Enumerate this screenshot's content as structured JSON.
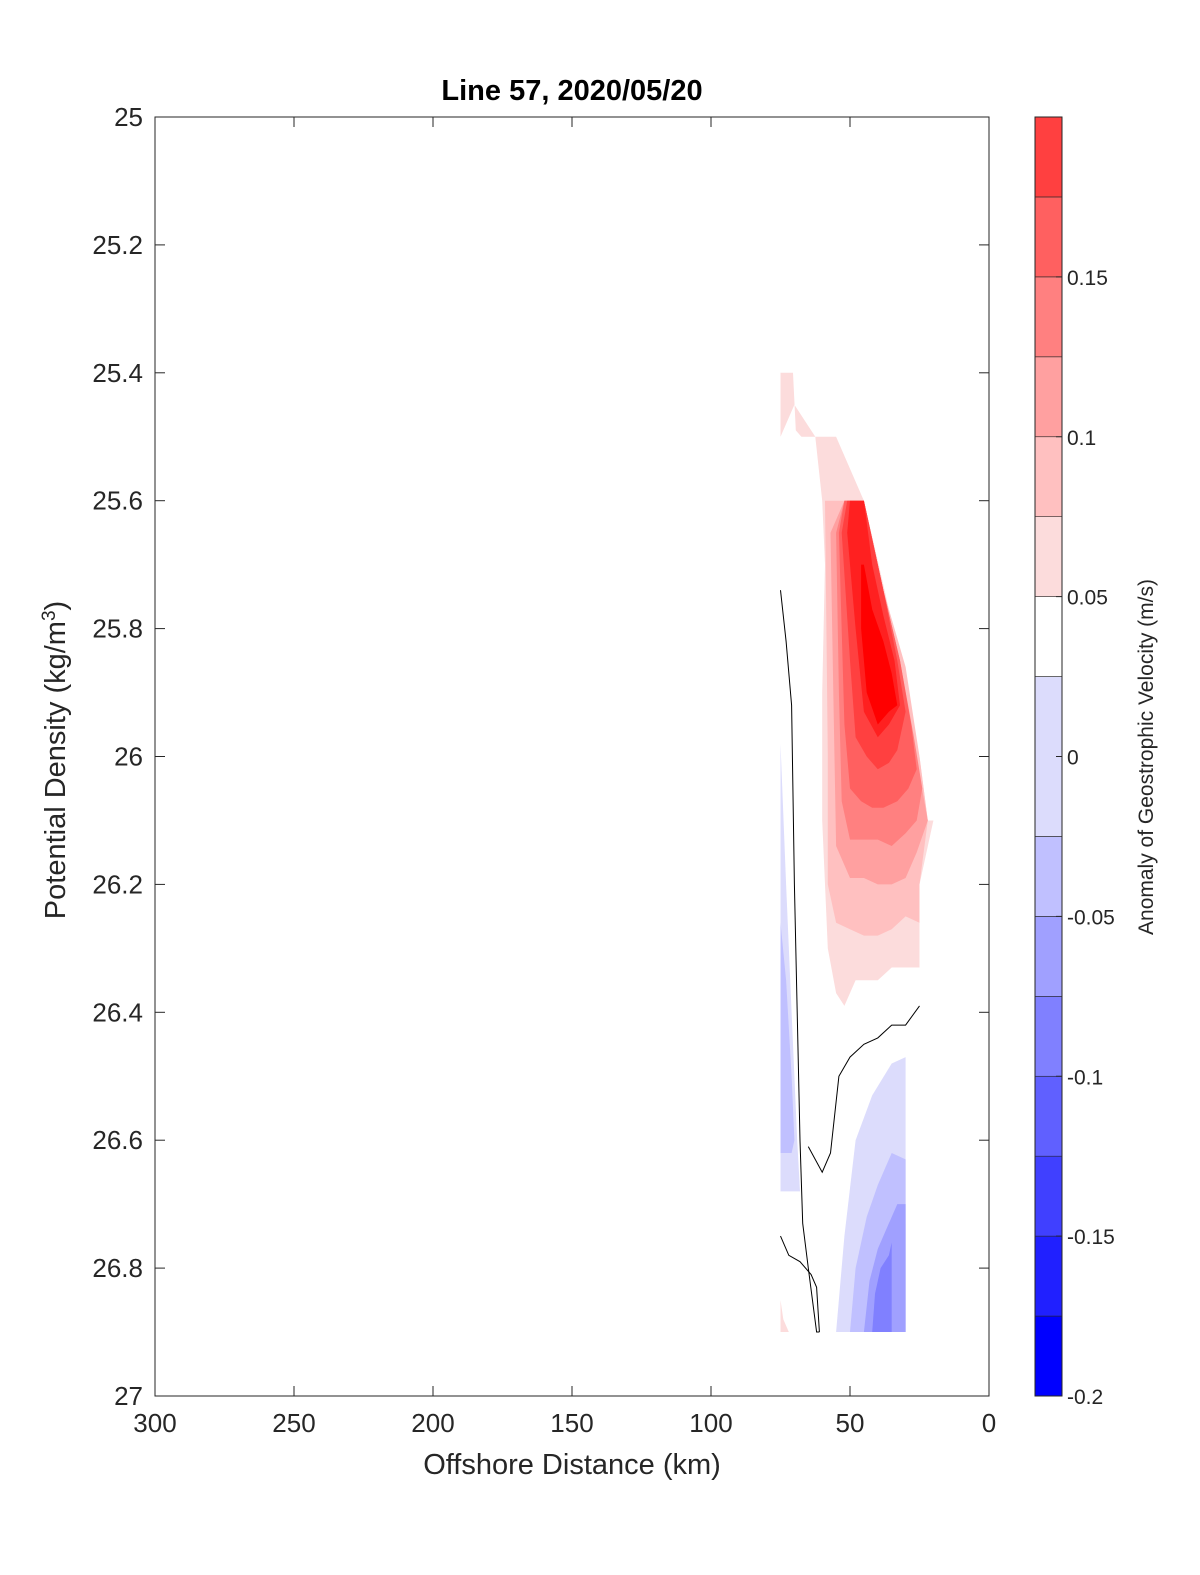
{
  "chart_data": {
    "type": "contour",
    "title": "Line 57, 2020/05/20",
    "xlabel": "Offshore Distance (km)",
    "ylabel_main": "Potential Density (kg/m",
    "ylabel_sup": "3",
    "ylabel_close": ")",
    "colorbar_label": "Anomaly of Geostrophic Velocity (m/s)",
    "xlim": [
      0,
      300
    ],
    "x_reversed": true,
    "ylim": [
      25,
      27
    ],
    "y_reversed": true,
    "xticks": [
      300,
      250,
      200,
      150,
      100,
      50,
      0
    ],
    "xtick_labels": [
      "300",
      "250",
      "200",
      "150",
      "100",
      "50",
      "0"
    ],
    "yticks": [
      25,
      25.2,
      25.4,
      25.6,
      25.8,
      26,
      26.2,
      26.4,
      26.6,
      26.8,
      27
    ],
    "ytick_labels": [
      "25",
      "25.2",
      "25.4",
      "25.6",
      "25.8",
      "26",
      "26.2",
      "26.4",
      "26.6",
      "26.8",
      "27"
    ],
    "colorbar": {
      "clim": [
        -0.2,
        0.2
      ],
      "ticks": [
        -0.2,
        -0.15,
        -0.1,
        -0.05,
        0,
        0.05,
        0.1,
        0.15
      ],
      "tick_labels": [
        "-0.2",
        "-0.15",
        "-0.1",
        "-0.05",
        "0",
        "0.05",
        "0.1",
        "0.15"
      ],
      "levels": [
        -0.2,
        -0.175,
        -0.15,
        -0.125,
        -0.1,
        -0.075,
        -0.05,
        -0.025,
        0.025,
        0.05,
        0.075,
        0.1,
        0.125,
        0.15,
        0.175,
        0.2
      ],
      "colors": [
        "#0000ff",
        "#2020ff",
        "#4040ff",
        "#6060ff",
        "#8080ff",
        "#a0a0ff",
        "#c0c0ff",
        "#dcdcfc",
        "#ffffff",
        "#fcdcdc",
        "#ffc0c0",
        "#ffa0a0",
        "#ff8080",
        "#ff6060",
        "#ff4040",
        "#ff2020",
        "#ff0000"
      ]
    },
    "filled_regions": [
      {
        "level": 0.0375,
        "color": "#fcdcdc",
        "points": [
          [
            75,
            25.4
          ],
          [
            70.5,
            25.4
          ],
          [
            69.5,
            25.49
          ],
          [
            67.5,
            25.5
          ],
          [
            62.5,
            25.5
          ],
          [
            60,
            25.6
          ],
          [
            59,
            25.7
          ],
          [
            60,
            25.9
          ],
          [
            60,
            26.1
          ],
          [
            58,
            26.3
          ],
          [
            55,
            26.37
          ],
          [
            52,
            26.39
          ],
          [
            48,
            26.35
          ],
          [
            40,
            26.35
          ],
          [
            35,
            26.33
          ],
          [
            30,
            26.33
          ],
          [
            25,
            26.33
          ],
          [
            25,
            26.2
          ],
          [
            20,
            26.1
          ],
          [
            22,
            26.1
          ],
          [
            25,
            26
          ],
          [
            30,
            25.9
          ],
          [
            37,
            25.75
          ],
          [
            45,
            25.6
          ],
          [
            55,
            25.5
          ],
          [
            62.5,
            25.5
          ],
          [
            70,
            25.45
          ],
          [
            75,
            25.5
          ]
        ]
      },
      {
        "level": -0.0375,
        "color": "#dcdcfc",
        "points": [
          [
            75,
            25.98
          ],
          [
            73,
            26.2
          ],
          [
            71,
            26.4
          ],
          [
            69,
            26.6
          ],
          [
            68,
            26.68
          ],
          [
            75,
            26.68
          ]
        ]
      },
      {
        "level": -0.0375,
        "color": "#dcdcfc",
        "points": [
          [
            55,
            26.9
          ],
          [
            52,
            26.75
          ],
          [
            48,
            26.6
          ],
          [
            42,
            26.53
          ],
          [
            35,
            26.48
          ],
          [
            30,
            26.47
          ],
          [
            30,
            26.9
          ]
        ]
      },
      {
        "level": 0.0625,
        "color": "#ffc0c0",
        "points": [
          [
            59,
            25.6
          ],
          [
            57,
            25.6
          ],
          [
            52,
            25.6
          ],
          [
            45,
            25.6
          ],
          [
            38,
            25.74
          ],
          [
            30,
            25.86
          ],
          [
            25,
            26
          ],
          [
            22,
            26.1
          ],
          [
            25,
            26.2
          ],
          [
            25,
            26.26
          ],
          [
            30,
            26.25
          ],
          [
            35,
            26.27
          ],
          [
            40,
            26.28
          ],
          [
            45,
            26.28
          ],
          [
            50,
            26.27
          ],
          [
            55,
            26.26
          ],
          [
            58,
            26.2
          ],
          [
            58,
            26.0
          ],
          [
            58.5,
            25.8
          ]
        ]
      },
      {
        "level": 0.0875,
        "color": "#ffa0a0",
        "points": [
          [
            57,
            25.65
          ],
          [
            52,
            25.6
          ],
          [
            45,
            25.6
          ],
          [
            38,
            25.74
          ],
          [
            32,
            25.85
          ],
          [
            27,
            25.98
          ],
          [
            22,
            26.1
          ],
          [
            26,
            26.15
          ],
          [
            30,
            26.19
          ],
          [
            35,
            26.2
          ],
          [
            40,
            26.2
          ],
          [
            45,
            26.19
          ],
          [
            50,
            26.19
          ],
          [
            55,
            26.14
          ],
          [
            56,
            25.9
          ]
        ]
      },
      {
        "level": 0.1125,
        "color": "#ff8080",
        "points": [
          [
            55,
            25.65
          ],
          [
            52,
            25.6
          ],
          [
            45,
            25.6
          ],
          [
            38,
            25.74
          ],
          [
            32,
            25.85
          ],
          [
            27,
            25.97
          ],
          [
            24,
            26.05
          ],
          [
            26,
            26.1
          ],
          [
            30,
            26.12
          ],
          [
            35,
            26.14
          ],
          [
            40,
            26.13
          ],
          [
            45,
            26.13
          ],
          [
            50,
            26.13
          ],
          [
            53,
            26.07
          ],
          [
            54,
            25.9
          ]
        ]
      },
      {
        "level": 0.1375,
        "color": "#ff6060",
        "points": [
          [
            54,
            25.65
          ],
          [
            52,
            25.6
          ],
          [
            45,
            25.6
          ],
          [
            38,
            25.74
          ],
          [
            32,
            25.85
          ],
          [
            28,
            25.95
          ],
          [
            26,
            26.02
          ],
          [
            29,
            26.05
          ],
          [
            33,
            26.07
          ],
          [
            38,
            26.08
          ],
          [
            42,
            26.08
          ],
          [
            46,
            26.07
          ],
          [
            50,
            26.05
          ],
          [
            52,
            25.95
          ]
        ]
      },
      {
        "level": 0.1625,
        "color": "#ff4040",
        "points": [
          [
            53,
            25.65
          ],
          [
            51,
            25.6
          ],
          [
            45,
            25.6
          ],
          [
            38,
            25.74
          ],
          [
            33,
            25.85
          ],
          [
            30,
            25.93
          ],
          [
            33,
            25.99
          ],
          [
            36,
            26.01
          ],
          [
            40,
            26.02
          ],
          [
            44,
            26.0
          ],
          [
            48,
            25.97
          ],
          [
            50,
            25.85
          ]
        ]
      },
      {
        "level": 0.1875,
        "color": "#ff2020",
        "points": [
          [
            51,
            25.65
          ],
          [
            50,
            25.6
          ],
          [
            45,
            25.6
          ],
          [
            42,
            25.7
          ],
          [
            38,
            25.78
          ],
          [
            34,
            25.85
          ],
          [
            32,
            25.92
          ],
          [
            36,
            25.95
          ],
          [
            40,
            25.97
          ],
          [
            45,
            25.93
          ],
          [
            48,
            25.8
          ]
        ]
      },
      {
        "level": 0.2,
        "color": "#ff0000",
        "points": [
          [
            46,
            25.7
          ],
          [
            45,
            25.7
          ],
          [
            42,
            25.77
          ],
          [
            38,
            25.82
          ],
          [
            35,
            25.87
          ],
          [
            33,
            25.92
          ],
          [
            36,
            25.93
          ],
          [
            40,
            25.95
          ],
          [
            44,
            25.9
          ],
          [
            46,
            25.8
          ]
        ]
      },
      {
        "level": -0.0625,
        "color": "#c0c0ff",
        "points": [
          [
            75,
            26.26
          ],
          [
            73,
            26.35
          ],
          [
            71,
            26.5
          ],
          [
            70,
            26.6
          ],
          [
            71,
            26.62
          ],
          [
            75,
            26.62
          ]
        ]
      },
      {
        "level": -0.0625,
        "color": "#c0c0ff",
        "points": [
          [
            50,
            26.9
          ],
          [
            48,
            26.8
          ],
          [
            44,
            26.72
          ],
          [
            40,
            26.67
          ],
          [
            35,
            26.62
          ],
          [
            30,
            26.63
          ],
          [
            30,
            26.9
          ]
        ]
      },
      {
        "level": -0.0875,
        "color": "#a0a0ff",
        "points": [
          [
            45,
            26.9
          ],
          [
            43,
            26.82
          ],
          [
            40,
            26.77
          ],
          [
            36,
            26.73
          ],
          [
            33,
            26.7
          ],
          [
            30,
            26.7
          ],
          [
            30,
            26.9
          ]
        ]
      },
      {
        "level": -0.1125,
        "color": "#8080ff",
        "points": [
          [
            42,
            26.9
          ],
          [
            41,
            26.84
          ],
          [
            39,
            26.8
          ],
          [
            36,
            26.78
          ],
          [
            35,
            26.76
          ],
          [
            35,
            26.9
          ]
        ]
      },
      {
        "level": 0.0375,
        "color": "#fcdcdc",
        "points": [
          [
            75,
            26.85
          ],
          [
            74,
            26.88
          ],
          [
            72,
            26.9
          ],
          [
            75,
            26.9
          ]
        ]
      }
    ],
    "zero_contours": [
      {
        "points": [
          [
            75,
            25.74
          ],
          [
            73,
            25.82
          ],
          [
            71,
            25.92
          ],
          [
            70,
            26.2
          ],
          [
            69,
            26.4
          ],
          [
            68,
            26.6
          ],
          [
            67,
            26.73
          ],
          [
            65,
            26.8
          ],
          [
            62,
            26.9
          ],
          [
            61,
            26.9
          ]
        ]
      },
      {
        "points": [
          [
            65,
            26.61
          ],
          [
            60,
            26.65
          ],
          [
            57,
            26.62
          ],
          [
            54,
            26.5
          ],
          [
            50,
            26.47
          ],
          [
            45,
            26.45
          ],
          [
            40,
            26.44
          ],
          [
            35,
            26.42
          ],
          [
            30,
            26.42
          ],
          [
            25,
            26.39
          ]
        ]
      },
      {
        "points": [
          [
            75,
            26.75
          ],
          [
            72,
            26.78
          ],
          [
            68,
            26.79
          ],
          [
            64,
            26.81
          ],
          [
            62,
            26.83
          ],
          [
            61,
            26.9
          ]
        ]
      }
    ]
  }
}
